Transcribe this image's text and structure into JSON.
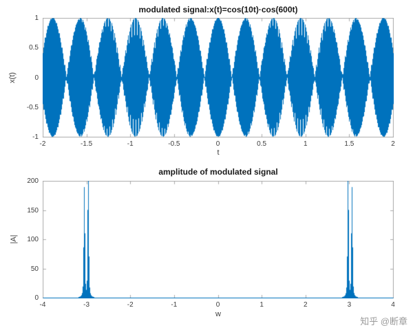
{
  "figure": {
    "background": "#ffffff",
    "watermark": "知乎 @断章"
  },
  "chart_data": [
    {
      "type": "line",
      "title": "modulated signal:x(t)=cos(10t)·cos(600t)",
      "xlabel": "t",
      "ylabel": "x(t)",
      "xlim": [
        -2,
        2
      ],
      "ylim": [
        -1,
        1
      ],
      "xticks": [
        -2,
        -1.5,
        -1,
        -0.5,
        0,
        0.5,
        1,
        1.5,
        2
      ],
      "yticks": [
        -1,
        -0.5,
        0,
        0.5,
        1
      ],
      "grid": false,
      "legend": null,
      "line_color": "#0072BD",
      "signal": {
        "formula": "x(t)=cos(10t)*cos(600t)",
        "envelope_freq_rad": 10,
        "carrier_freq_rad": 600
      }
    },
    {
      "type": "line",
      "title": "amplitude of modulated signal",
      "xlabel": "w",
      "ylabel": "|A|",
      "xlim": [
        -4,
        4
      ],
      "ylim": [
        0,
        200
      ],
      "xticks": [
        -4,
        -3,
        -2,
        -1,
        0,
        1,
        2,
        3,
        4
      ],
      "yticks": [
        0,
        50,
        100,
        150,
        200
      ],
      "grid": false,
      "legend": null,
      "line_color": "#0072BD",
      "baseline": 0,
      "peak_width": 0.008,
      "peaks": [
        {
          "w": -3.05,
          "amp": 188
        },
        {
          "w": -2.96,
          "amp": 200
        },
        {
          "w": 2.96,
          "amp": 200
        },
        {
          "w": 3.05,
          "amp": 188
        }
      ]
    }
  ]
}
